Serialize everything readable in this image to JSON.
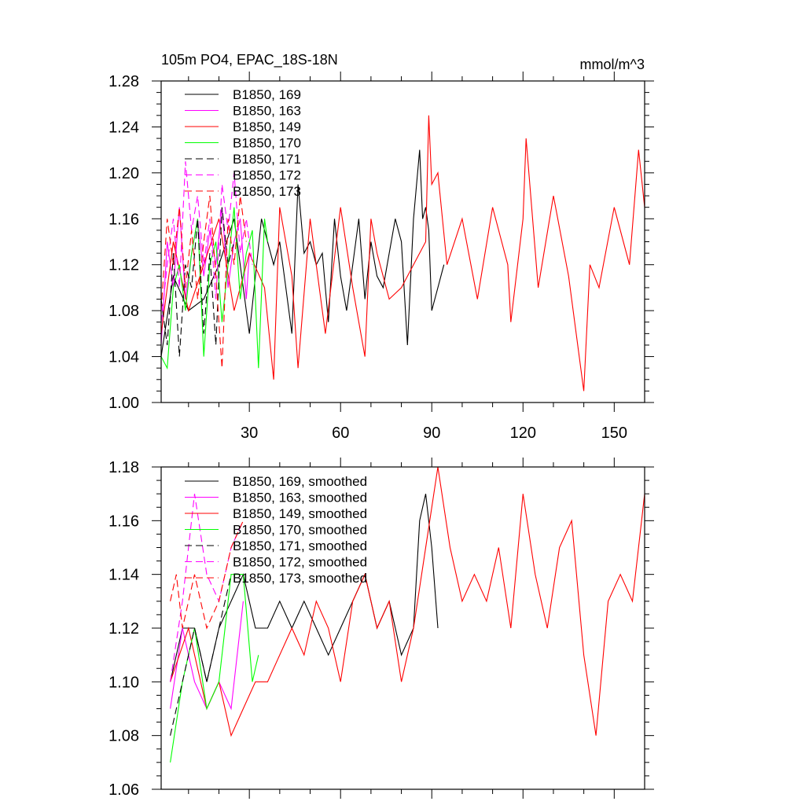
{
  "header": {
    "title": "105m PO4, EPAC_18S-18N",
    "units": "mmol/m^3"
  },
  "chart_data": [
    {
      "type": "line",
      "title": "105m PO4, EPAC_18S-18N",
      "units": "mmol/m^3",
      "xlim": [
        1,
        160
      ],
      "ylim": [
        1.0,
        1.28
      ],
      "xticks": [
        30,
        60,
        90,
        120,
        150
      ],
      "xtick_labels": [
        "30",
        "60",
        "90",
        "120",
        "150"
      ],
      "yticks": [
        1.0,
        1.04,
        1.08,
        1.12,
        1.16,
        1.2,
        1.24,
        1.28
      ],
      "ytick_labels": [
        "1.00",
        "1.04",
        "1.08",
        "1.12",
        "1.16",
        "1.20",
        "1.24",
        "1.28"
      ],
      "legend_position": "top-left",
      "series": [
        {
          "name": "B1850, 169",
          "color": "#000000",
          "dash": "solid",
          "x": [
            1,
            5,
            10,
            15,
            20,
            25,
            30,
            34,
            38,
            40,
            42,
            44,
            46,
            48,
            50,
            52,
            54,
            56,
            58,
            60,
            62,
            64,
            66,
            68,
            70,
            72,
            74,
            76,
            78,
            80,
            82,
            84,
            86,
            87,
            88,
            89,
            90,
            92,
            94
          ],
          "y": [
            1.04,
            1.11,
            1.08,
            1.09,
            1.12,
            1.16,
            1.06,
            1.16,
            1.12,
            1.14,
            1.1,
            1.06,
            1.19,
            1.13,
            1.14,
            1.12,
            1.13,
            1.07,
            1.16,
            1.11,
            1.08,
            1.12,
            1.16,
            1.09,
            1.14,
            1.11,
            1.1,
            1.13,
            1.16,
            1.14,
            1.05,
            1.16,
            1.22,
            1.16,
            1.17,
            1.15,
            1.08,
            1.1,
            1.12
          ]
        },
        {
          "name": "B1850, 163",
          "color": "#ff00ff",
          "dash": "solid",
          "x": [
            1,
            3,
            5,
            7,
            9,
            11,
            13,
            15,
            17,
            19,
            21,
            23,
            25,
            27,
            29,
            30
          ],
          "y": [
            1.05,
            1.14,
            1.1,
            1.17,
            1.09,
            1.13,
            1.16,
            1.11,
            1.15,
            1.12,
            1.17,
            1.1,
            1.14,
            1.16,
            1.09,
            1.13
          ]
        },
        {
          "name": "B1850, 149",
          "color": "#ff0000",
          "dash": "solid",
          "x": [
            1,
            5,
            10,
            15,
            20,
            25,
            30,
            35,
            38,
            40,
            44,
            46,
            50,
            55,
            60,
            64,
            68,
            70,
            72,
            76,
            80,
            84,
            88,
            89,
            90,
            92,
            95,
            100,
            105,
            110,
            115,
            116,
            120,
            121,
            125,
            130,
            135,
            140,
            142,
            145,
            150,
            155,
            158,
            160
          ],
          "y": [
            1.06,
            1.14,
            1.08,
            1.12,
            1.16,
            1.08,
            1.13,
            1.1,
            1.02,
            1.17,
            1.11,
            1.03,
            1.16,
            1.06,
            1.17,
            1.1,
            1.04,
            1.16,
            1.13,
            1.09,
            1.1,
            1.12,
            1.14,
            1.25,
            1.19,
            1.2,
            1.12,
            1.16,
            1.09,
            1.17,
            1.12,
            1.07,
            1.16,
            1.23,
            1.1,
            1.18,
            1.11,
            1.01,
            1.12,
            1.1,
            1.17,
            1.12,
            1.22,
            1.17
          ]
        },
        {
          "name": "B1850, 170",
          "color": "#00ff00",
          "dash": "solid",
          "x": [
            1,
            3,
            5,
            7,
            9,
            11,
            13,
            15,
            17,
            19,
            21,
            23,
            25,
            27,
            29,
            31,
            33,
            35,
            36
          ],
          "y": [
            1.04,
            1.03,
            1.1,
            1.12,
            1.08,
            1.13,
            1.16,
            1.04,
            1.12,
            1.14,
            1.07,
            1.12,
            1.17,
            1.09,
            1.13,
            1.15,
            1.03,
            1.16,
            1.14
          ]
        },
        {
          "name": "B1850, 171",
          "color": "#000000",
          "dash": "dashed",
          "x": [
            1,
            3,
            5,
            7,
            9,
            11,
            13,
            15,
            17,
            19,
            21,
            23,
            25
          ],
          "y": [
            1.09,
            1.05,
            1.13,
            1.04,
            1.12,
            1.1,
            1.16,
            1.06,
            1.13,
            1.05,
            1.17,
            1.12,
            1.14
          ]
        },
        {
          "name": "B1850, 172",
          "color": "#ff00ff",
          "dash": "dashed",
          "x": [
            1,
            3,
            5,
            7,
            9,
            11,
            13,
            15,
            17,
            19,
            21,
            23,
            25,
            27,
            29,
            31
          ],
          "y": [
            1.07,
            1.12,
            1.16,
            1.1,
            1.21,
            1.15,
            1.18,
            1.12,
            1.16,
            1.09,
            1.19,
            1.15,
            1.2,
            1.13,
            1.16,
            1.12
          ]
        },
        {
          "name": "B1850, 173",
          "color": "#ff0000",
          "dash": "dashed",
          "x": [
            1,
            3,
            5,
            7,
            9,
            11,
            13,
            15,
            17,
            19,
            21,
            23,
            25,
            27,
            29
          ],
          "y": [
            1.08,
            1.16,
            1.12,
            1.17,
            1.1,
            1.15,
            1.09,
            1.14,
            1.18,
            1.11,
            1.03,
            1.16,
            1.12,
            1.18,
            1.14
          ]
        }
      ]
    },
    {
      "type": "line",
      "xlim": [
        1,
        160
      ],
      "ylim": [
        1.06,
        1.18
      ],
      "xticks": [
        30,
        60,
        90,
        120,
        150
      ],
      "yticks": [
        1.06,
        1.08,
        1.1,
        1.12,
        1.14,
        1.16,
        1.18
      ],
      "ytick_labels": [
        "1.06",
        "1.08",
        "1.10",
        "1.12",
        "1.14",
        "1.16",
        "1.18"
      ],
      "legend_position": "top-left",
      "series": [
        {
          "name": "B1850, 169, smoothed",
          "color": "#000000",
          "dash": "solid",
          "x": [
            4,
            8,
            12,
            16,
            20,
            24,
            28,
            32,
            36,
            40,
            44,
            48,
            52,
            56,
            60,
            64,
            68,
            72,
            76,
            80,
            84,
            86,
            88,
            90,
            92
          ],
          "y": [
            1.1,
            1.12,
            1.12,
            1.1,
            1.12,
            1.13,
            1.14,
            1.12,
            1.12,
            1.13,
            1.12,
            1.13,
            1.12,
            1.11,
            1.12,
            1.13,
            1.14,
            1.12,
            1.13,
            1.11,
            1.12,
            1.16,
            1.17,
            1.15,
            1.12
          ]
        },
        {
          "name": "B1850, 163, smoothed",
          "color": "#ff00ff",
          "dash": "solid",
          "x": [
            4,
            8,
            12,
            16,
            20,
            24,
            28
          ],
          "y": [
            1.09,
            1.12,
            1.1,
            1.09,
            1.1,
            1.09,
            1.13
          ]
        },
        {
          "name": "B1850, 149, smoothed",
          "color": "#ff0000",
          "dash": "solid",
          "x": [
            4,
            10,
            16,
            20,
            24,
            28,
            32,
            36,
            40,
            44,
            48,
            52,
            56,
            60,
            64,
            68,
            72,
            76,
            80,
            84,
            88,
            92,
            96,
            100,
            104,
            108,
            112,
            116,
            120,
            124,
            128,
            132,
            136,
            140,
            144,
            148,
            152,
            156,
            160
          ],
          "y": [
            1.1,
            1.12,
            1.09,
            1.1,
            1.08,
            1.09,
            1.1,
            1.1,
            1.11,
            1.12,
            1.11,
            1.13,
            1.12,
            1.1,
            1.13,
            1.14,
            1.12,
            1.13,
            1.1,
            1.12,
            1.15,
            1.18,
            1.15,
            1.13,
            1.14,
            1.13,
            1.15,
            1.12,
            1.17,
            1.14,
            1.12,
            1.15,
            1.16,
            1.11,
            1.08,
            1.13,
            1.14,
            1.13,
            1.17
          ]
        },
        {
          "name": "B1850, 170, smoothed",
          "color": "#00ff00",
          "dash": "solid",
          "x": [
            4,
            8,
            12,
            16,
            20,
            24,
            28,
            31,
            33
          ],
          "y": [
            1.07,
            1.1,
            1.12,
            1.09,
            1.1,
            1.14,
            1.14,
            1.1,
            1.11
          ]
        },
        {
          "name": "B1850, 171, smoothed",
          "color": "#000000",
          "dash": "dashed",
          "x": [
            4,
            8,
            12,
            16,
            20,
            24
          ],
          "y": [
            1.08,
            1.1,
            1.12,
            1.1,
            1.12,
            1.14
          ]
        },
        {
          "name": "B1850, 172, smoothed",
          "color": "#ff00ff",
          "dash": "dashed",
          "x": [
            4,
            8,
            12,
            16,
            20,
            24,
            28
          ],
          "y": [
            1.1,
            1.13,
            1.17,
            1.14,
            1.13,
            1.15,
            1.16
          ]
        },
        {
          "name": "B1850, 173, smoothed",
          "color": "#ff0000",
          "dash": "dashed",
          "x": [
            4,
            6,
            8,
            12,
            16,
            20,
            24,
            28
          ],
          "y": [
            1.13,
            1.14,
            1.12,
            1.14,
            1.12,
            1.13,
            1.15,
            1.16
          ]
        }
      ]
    }
  ]
}
